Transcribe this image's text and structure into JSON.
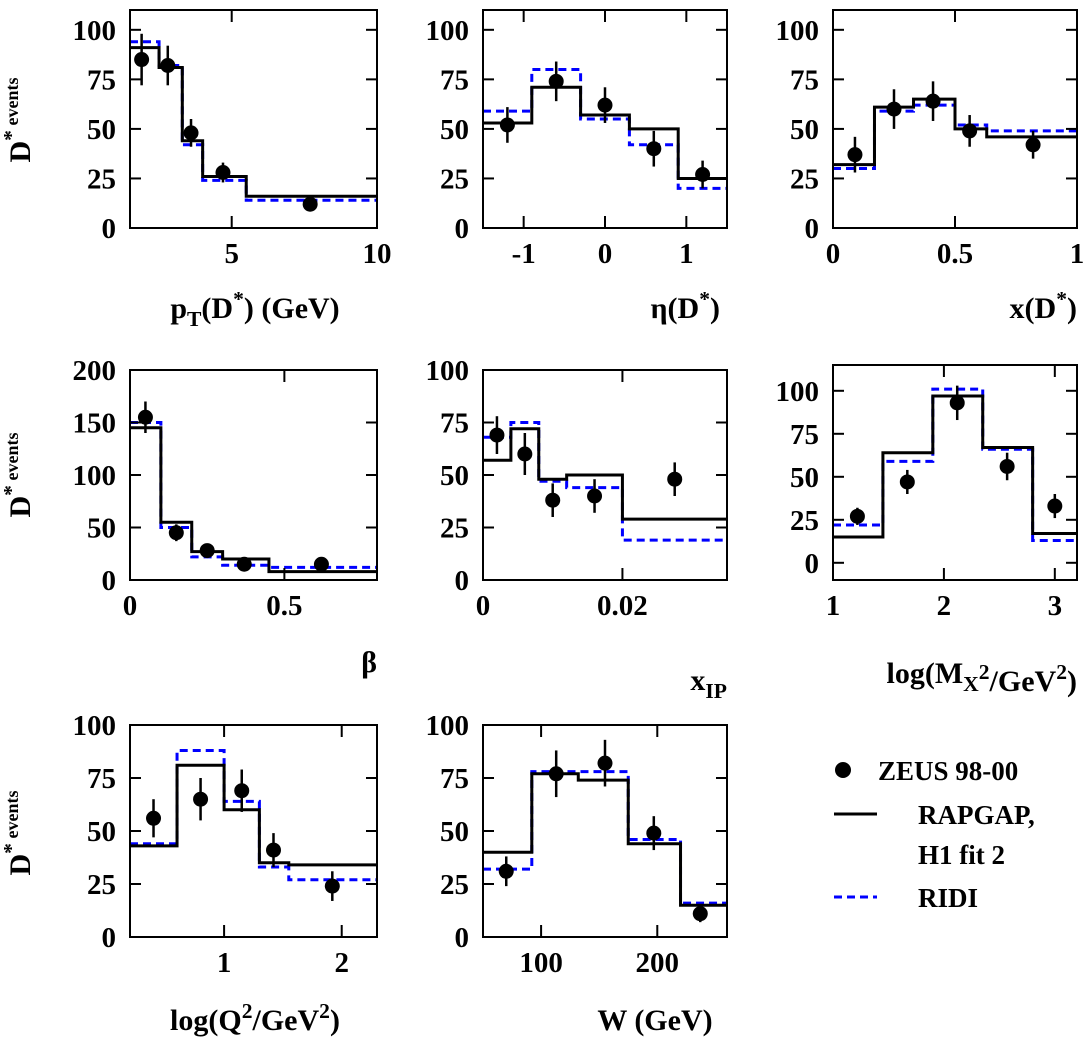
{
  "legend": {
    "data_label": "ZEUS 98-00",
    "rapgap_label_line1": "RAPGAP,",
    "rapgap_label_line2": "H1 fit 2",
    "ridi_label": "RIDI",
    "colors": {
      "data": "#000000",
      "rapgap": "#000000",
      "ridi": "#0000ff"
    }
  },
  "chart_data": [
    {
      "id": "pt",
      "type": "histogram",
      "xlabel": "p_T(D*) (GeV)",
      "ylabel": "D* events",
      "xlim": [
        1.5,
        10
      ],
      "ylim": [
        0,
        110
      ],
      "xticks": [
        {
          "v": 5,
          "l": "5"
        },
        {
          "v": 10,
          "l": "10"
        }
      ],
      "yticks": [
        {
          "v": 0,
          "l": "0"
        },
        {
          "v": 25,
          "l": "25"
        },
        {
          "v": 50,
          "l": "50"
        },
        {
          "v": 75,
          "l": "75"
        },
        {
          "v": 100,
          "l": "100"
        }
      ],
      "edges": [
        1.5,
        2.5,
        3.3,
        4.0,
        5.5,
        10
      ],
      "rapgap": [
        91,
        81,
        44,
        26,
        16
      ],
      "ridi": [
        94,
        82,
        42,
        24,
        14
      ],
      "points": [
        {
          "x": 1.9,
          "y": 85,
          "err": 13
        },
        {
          "x": 2.8,
          "y": 82,
          "err": 10
        },
        {
          "x": 3.6,
          "y": 48,
          "err": 7
        },
        {
          "x": 4.7,
          "y": 28,
          "err": 5
        },
        {
          "x": 7.7,
          "y": 12,
          "err": 3
        }
      ]
    },
    {
      "id": "eta",
      "type": "histogram",
      "xlabel": "η(D*)",
      "ylabel": "",
      "xlim": [
        -1.5,
        1.5
      ],
      "ylim": [
        0,
        110
      ],
      "xticks": [
        {
          "v": -1,
          "l": "-1"
        },
        {
          "v": 0,
          "l": "0"
        },
        {
          "v": 1,
          "l": "1"
        }
      ],
      "yticks": [
        {
          "v": 0,
          "l": "0"
        },
        {
          "v": 25,
          "l": "25"
        },
        {
          "v": 50,
          "l": "50"
        },
        {
          "v": 75,
          "l": "75"
        },
        {
          "v": 100,
          "l": "100"
        }
      ],
      "edges": [
        -1.5,
        -0.9,
        -0.3,
        0.3,
        0.9,
        1.5
      ],
      "rapgap": [
        53,
        71,
        57,
        50,
        25
      ],
      "ridi": [
        59,
        80,
        55,
        42,
        20
      ],
      "points": [
        {
          "x": -1.2,
          "y": 52,
          "err": 9
        },
        {
          "x": -0.6,
          "y": 74,
          "err": 10
        },
        {
          "x": 0.0,
          "y": 62,
          "err": 9
        },
        {
          "x": 0.6,
          "y": 40,
          "err": 9
        },
        {
          "x": 1.2,
          "y": 27,
          "err": 7
        }
      ]
    },
    {
      "id": "xd",
      "type": "histogram",
      "xlabel": "x(D*)",
      "ylabel": "",
      "xlim": [
        0,
        1
      ],
      "ylim": [
        0,
        110
      ],
      "xticks": [
        {
          "v": 0,
          "l": "0"
        },
        {
          "v": 0.5,
          "l": "0.5"
        },
        {
          "v": 1,
          "l": "1"
        }
      ],
      "yticks": [
        {
          "v": 0,
          "l": "0"
        },
        {
          "v": 25,
          "l": "25"
        },
        {
          "v": 50,
          "l": "50"
        },
        {
          "v": 75,
          "l": "75"
        },
        {
          "v": 100,
          "l": "100"
        }
      ],
      "edges": [
        0,
        0.17,
        0.33,
        0.5,
        0.63,
        1
      ],
      "rapgap": [
        32,
        61,
        65,
        50,
        46
      ],
      "ridi": [
        30,
        59,
        62,
        52,
        49
      ],
      "points": [
        {
          "x": 0.09,
          "y": 37,
          "err": 9
        },
        {
          "x": 0.25,
          "y": 60,
          "err": 10
        },
        {
          "x": 0.41,
          "y": 64,
          "err": 10
        },
        {
          "x": 0.56,
          "y": 49,
          "err": 8
        },
        {
          "x": 0.82,
          "y": 42,
          "err": 7
        }
      ]
    },
    {
      "id": "beta",
      "type": "histogram",
      "xlabel": "β",
      "ylabel": "D* events",
      "xlim": [
        0,
        0.8
      ],
      "ylim": [
        0,
        200
      ],
      "xticks": [
        {
          "v": 0,
          "l": "0"
        },
        {
          "v": 0.5,
          "l": "0.5"
        }
      ],
      "yticks": [
        {
          "v": 0,
          "l": "0"
        },
        {
          "v": 50,
          "l": "50"
        },
        {
          "v": 100,
          "l": "100"
        },
        {
          "v": 150,
          "l": "150"
        },
        {
          "v": 200,
          "l": "200"
        }
      ],
      "edges": [
        0,
        0.1,
        0.2,
        0.3,
        0.45,
        0.8
      ],
      "rapgap": [
        145,
        55,
        27,
        20,
        8
      ],
      "ridi": [
        150,
        50,
        22,
        14,
        12
      ],
      "points": [
        {
          "x": 0.05,
          "y": 155,
          "err": 15
        },
        {
          "x": 0.15,
          "y": 45,
          "err": 8
        },
        {
          "x": 0.25,
          "y": 28,
          "err": 5
        },
        {
          "x": 0.37,
          "y": 15,
          "err": 4
        },
        {
          "x": 0.62,
          "y": 15,
          "err": 3
        }
      ]
    },
    {
      "id": "xip",
      "type": "histogram",
      "xlabel": "x_IP",
      "ylabel": "",
      "xlim": [
        0,
        0.035
      ],
      "ylim": [
        0,
        100
      ],
      "xticks": [
        {
          "v": 0,
          "l": "0"
        },
        {
          "v": 0.02,
          "l": "0.02"
        }
      ],
      "yticks": [
        {
          "v": 0,
          "l": "0"
        },
        {
          "v": 25,
          "l": "25"
        },
        {
          "v": 50,
          "l": "50"
        },
        {
          "v": 75,
          "l": "75"
        },
        {
          "v": 100,
          "l": "100"
        }
      ],
      "edges": [
        0,
        0.004,
        0.008,
        0.012,
        0.02,
        0.035
      ],
      "rapgap": [
        57,
        72,
        48,
        50,
        29
      ],
      "ridi": [
        68,
        75,
        47,
        44,
        19
      ],
      "points": [
        {
          "x": 0.002,
          "y": 69,
          "err": 9
        },
        {
          "x": 0.006,
          "y": 60,
          "err": 10
        },
        {
          "x": 0.01,
          "y": 38,
          "err": 8
        },
        {
          "x": 0.016,
          "y": 40,
          "err": 8
        },
        {
          "x": 0.0275,
          "y": 48,
          "err": 8
        }
      ]
    },
    {
      "id": "mx",
      "type": "histogram",
      "xlabel": "log(M_X^2/GeV^2)",
      "ylabel": "",
      "xlim": [
        1,
        3.2
      ],
      "ylim": [
        -10,
        115
      ],
      "xticks": [
        {
          "v": 1,
          "l": "1"
        },
        {
          "v": 2,
          "l": "2"
        },
        {
          "v": 3,
          "l": "3"
        }
      ],
      "yticks": [
        {
          "v": 0,
          "l": "0"
        },
        {
          "v": 25,
          "l": "25"
        },
        {
          "v": 50,
          "l": "50"
        },
        {
          "v": 75,
          "l": "75"
        },
        {
          "v": 100,
          "l": "100"
        }
      ],
      "edges": [
        1,
        1.45,
        1.9,
        2.35,
        2.8,
        3.2
      ],
      "rapgap": [
        15,
        64,
        97,
        67,
        17
      ],
      "ridi": [
        22,
        59,
        101,
        66,
        13
      ],
      "points": [
        {
          "x": 1.22,
          "y": 27,
          "err": 5
        },
        {
          "x": 1.67,
          "y": 47,
          "err": 7
        },
        {
          "x": 2.12,
          "y": 93,
          "err": 10
        },
        {
          "x": 2.57,
          "y": 56,
          "err": 8
        },
        {
          "x": 3.0,
          "y": 33,
          "err": 7
        }
      ]
    },
    {
      "id": "q2",
      "type": "histogram",
      "xlabel": "log(Q^2/GeV^2)",
      "ylabel": "D* events",
      "xlim": [
        0.2,
        2.3
      ],
      "ylim": [
        0,
        100
      ],
      "xticks": [
        {
          "v": 1,
          "l": "1"
        },
        {
          "v": 2,
          "l": "2"
        }
      ],
      "yticks": [
        {
          "v": 0,
          "l": "0"
        },
        {
          "v": 25,
          "l": "25"
        },
        {
          "v": 50,
          "l": "50"
        },
        {
          "v": 75,
          "l": "75"
        },
        {
          "v": 100,
          "l": "100"
        }
      ],
      "edges": [
        0.2,
        0.6,
        1.0,
        1.3,
        1.55,
        2.3
      ],
      "rapgap": [
        43,
        81,
        60,
        35,
        34
      ],
      "ridi": [
        44,
        88,
        64,
        33,
        27
      ],
      "points": [
        {
          "x": 0.4,
          "y": 56,
          "err": 9
        },
        {
          "x": 0.8,
          "y": 65,
          "err": 10
        },
        {
          "x": 1.15,
          "y": 69,
          "err": 10
        },
        {
          "x": 1.42,
          "y": 41,
          "err": 8
        },
        {
          "x": 1.92,
          "y": 24,
          "err": 7
        }
      ]
    },
    {
      "id": "w",
      "type": "histogram",
      "xlabel": "W (GeV)",
      "ylabel": "",
      "xlim": [
        50,
        260
      ],
      "ylim": [
        0,
        100
      ],
      "xticks": [
        {
          "v": 100,
          "l": "100"
        },
        {
          "v": 200,
          "l": "200"
        }
      ],
      "yticks": [
        {
          "v": 0,
          "l": "0"
        },
        {
          "v": 25,
          "l": "25"
        },
        {
          "v": 50,
          "l": "50"
        },
        {
          "v": 75,
          "l": "75"
        },
        {
          "v": 100,
          "l": "100"
        }
      ],
      "edges": [
        50,
        92,
        132,
        175,
        220,
        260
      ],
      "rapgap": [
        40,
        77,
        74,
        44,
        15
      ],
      "ridi": [
        32,
        78,
        78,
        46,
        16
      ],
      "points": [
        {
          "x": 70,
          "y": 31,
          "err": 7
        },
        {
          "x": 113,
          "y": 77,
          "err": 11
        },
        {
          "x": 155,
          "y": 82,
          "err": 11
        },
        {
          "x": 197,
          "y": 49,
          "err": 8
        },
        {
          "x": 237,
          "y": 11,
          "err": 4
        }
      ]
    }
  ]
}
